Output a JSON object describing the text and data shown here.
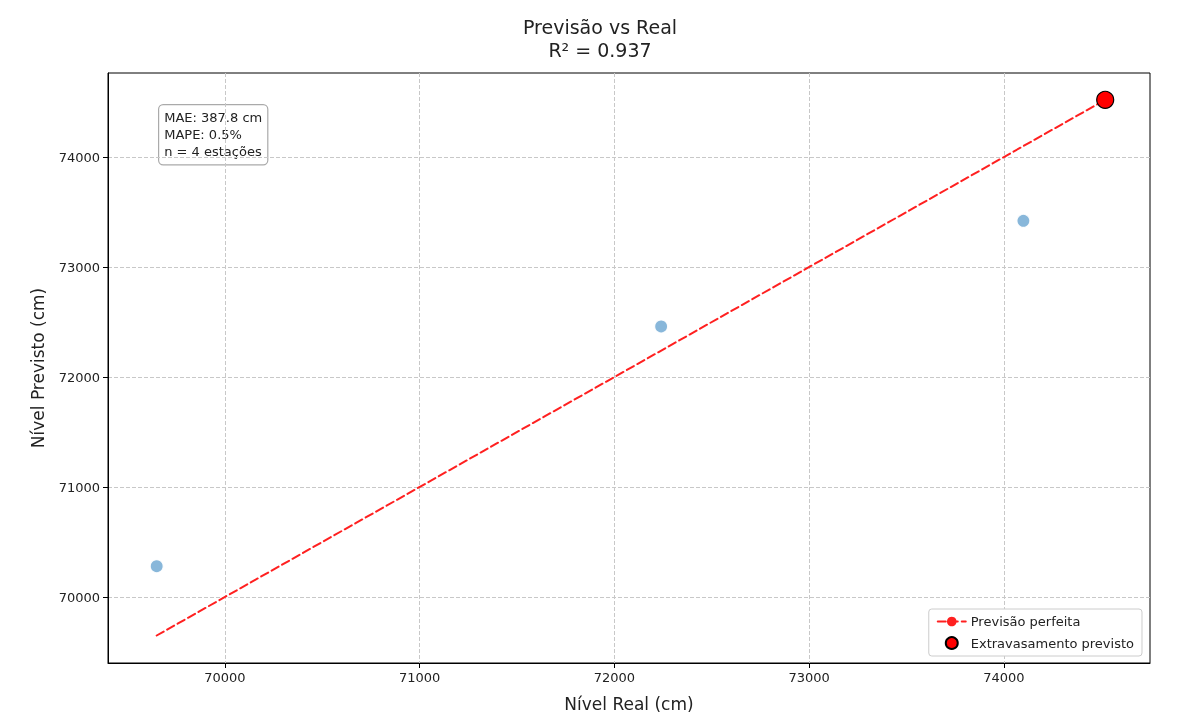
{
  "chart_data": {
    "type": "scatter",
    "title": "Previsão vs Real",
    "subtitle": "R² = 0.937",
    "xlabel": "Nível Real (cm)",
    "ylabel": "Nível Previsto (cm)",
    "annotations": [
      "MAE: 387.8 cm\nMAPE: 0.5%\nn = 4 estações"
    ],
    "series": [
      {
        "color": "#7bafd6",
        "x": [
          69650,
          72240,
          74100
        ],
        "values": [
          70280,
          72460,
          73420
        ]
      },
      {
        "type": "line",
        "name": "Previsão perfeita",
        "color": "#ff2020",
        "line_style": "dashed",
        "marker": "none",
        "x": [
          69650,
          74520
        ],
        "values": [
          69650,
          74520
        ]
      },
      {
        "name": "Extravasamento previsto",
        "color": "#ff0000",
        "x": [
          74520
        ],
        "values": [
          74520
        ]
      }
    ],
    "xlim": [
      69400,
      74750
    ],
    "xticks": [
      70000,
      71000,
      72000,
      73000,
      74000
    ],
    "ylim": [
      69400,
      74764
    ],
    "yticks": [
      70000,
      71000,
      72000,
      73000,
      74000
    ],
    "grid": true,
    "legend": "bottom right",
    "marker": "circle"
  }
}
